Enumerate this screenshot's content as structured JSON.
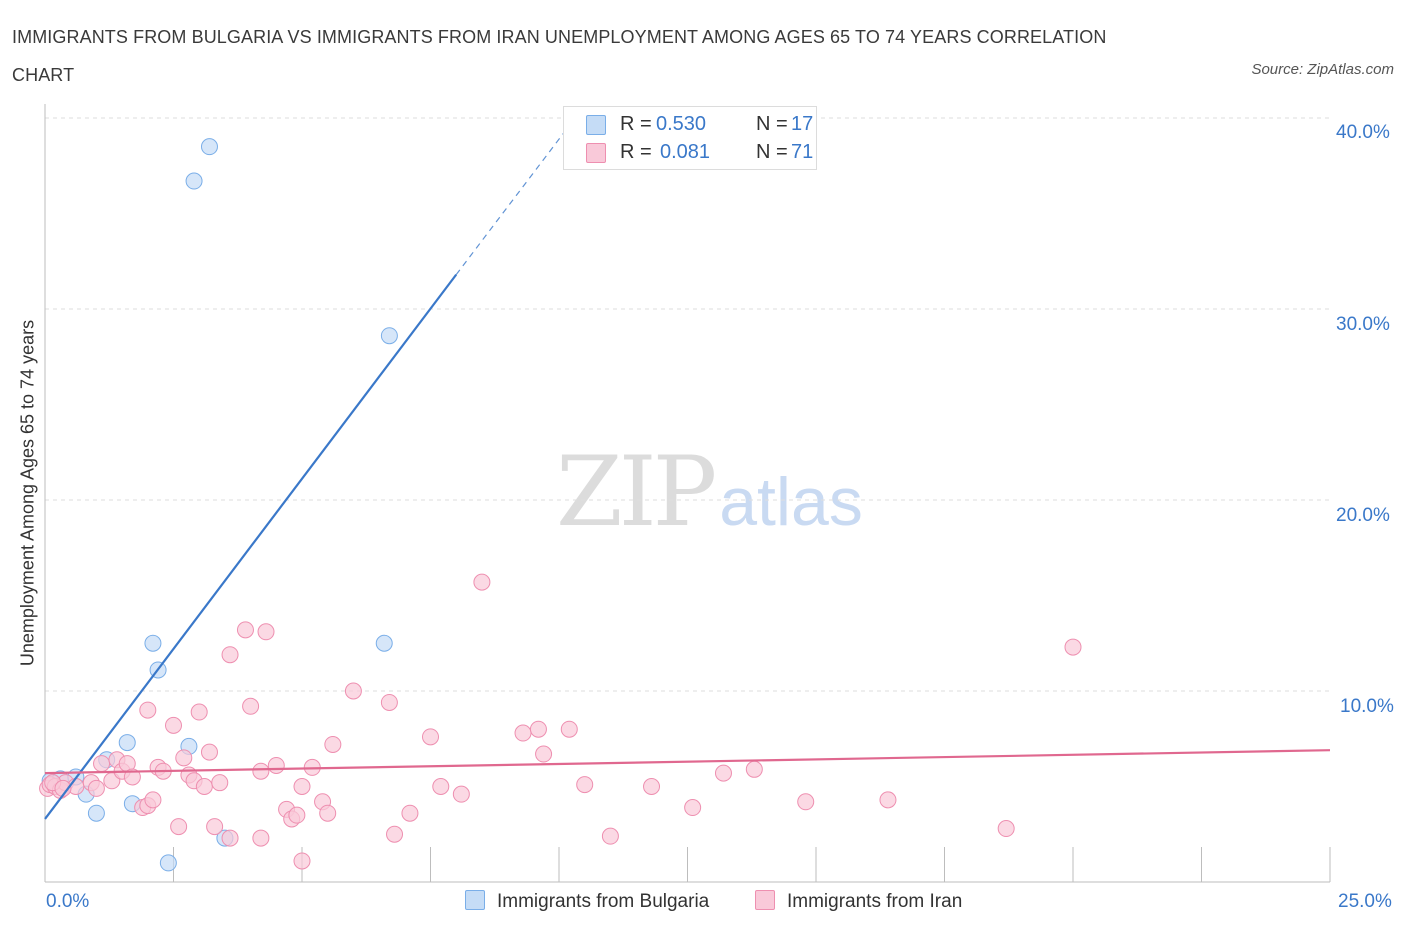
{
  "title": "IMMIGRANTS FROM BULGARIA VS IMMIGRANTS FROM IRAN UNEMPLOYMENT AMONG AGES 65 TO 74 YEARS CORRELATION CHART",
  "source": "Source: ZipAtlas.com",
  "watermark": {
    "zip": "ZIP",
    "atlas": "atlas"
  },
  "legend": {
    "r_label": "R =",
    "n_label": "N =",
    "bulgaria": {
      "r": "0.530",
      "n": "17"
    },
    "iran": {
      "r": "0.081",
      "n": "71"
    }
  },
  "chart_data": {
    "type": "scatter",
    "title": "IMMIGRANTS FROM BULGARIA VS IMMIGRANTS FROM IRAN UNEMPLOYMENT AMONG AGES 65 TO 74 YEARS CORRELATION CHART",
    "xlabel": "",
    "ylabel": "Unemployment Among Ages 65 to 74 years",
    "xlim": [
      0,
      25
    ],
    "ylim": [
      0,
      40
    ],
    "x_tick_labels": [
      "0.0%",
      "25.0%"
    ],
    "y_tick_labels": [
      "10.0%",
      "20.0%",
      "30.0%",
      "40.0%"
    ],
    "y_ticks": [
      10,
      20,
      30,
      40
    ],
    "grid": true,
    "legend_position": "top-center",
    "series": [
      {
        "name": "Immigrants from Bulgaria",
        "color": "#7aaee8",
        "fill": "#c5dcf6",
        "line_color": "#3a78c9",
        "r": 0.53,
        "n": 17,
        "trend": {
          "x0": 0,
          "y0": 3.3,
          "x1": 8.0,
          "y1": 31.8,
          "dashed_to_x": 10.2,
          "dashed_to_y": 39.6
        },
        "points": [
          [
            0.1,
            5.3
          ],
          [
            0.3,
            5.4
          ],
          [
            0.6,
            5.5
          ],
          [
            0.8,
            4.6
          ],
          [
            1.0,
            3.6
          ],
          [
            1.2,
            6.4
          ],
          [
            1.6,
            7.3
          ],
          [
            1.7,
            4.1
          ],
          [
            2.1,
            12.5
          ],
          [
            2.2,
            11.1
          ],
          [
            2.4,
            1.0
          ],
          [
            2.8,
            7.1
          ],
          [
            3.5,
            2.3
          ],
          [
            2.9,
            36.7
          ],
          [
            3.2,
            38.5
          ],
          [
            6.6,
            12.5
          ],
          [
            6.7,
            28.6
          ]
        ]
      },
      {
        "name": "Immigrants from Iran",
        "color": "#ee8fb0",
        "fill": "#f9c9d9",
        "line_color": "#e0688f",
        "r": 0.081,
        "n": 71,
        "trend": {
          "x0": 0,
          "y0": 5.7,
          "x1": 25,
          "y1": 6.9
        },
        "points": [
          [
            0.05,
            4.9
          ],
          [
            0.1,
            5.1
          ],
          [
            0.2,
            5.0
          ],
          [
            0.3,
            4.8
          ],
          [
            0.4,
            5.2
          ],
          [
            0.6,
            5.0
          ],
          [
            0.9,
            5.2
          ],
          [
            1.0,
            4.9
          ],
          [
            1.1,
            6.2
          ],
          [
            1.3,
            5.3
          ],
          [
            1.4,
            6.4
          ],
          [
            1.5,
            5.8
          ],
          [
            1.6,
            6.2
          ],
          [
            1.7,
            5.5
          ],
          [
            1.9,
            3.9
          ],
          [
            2.0,
            4.0
          ],
          [
            2.0,
            9.0
          ],
          [
            2.1,
            4.3
          ],
          [
            2.2,
            6.0
          ],
          [
            2.3,
            5.8
          ],
          [
            2.5,
            8.2
          ],
          [
            2.6,
            2.9
          ],
          [
            2.7,
            6.5
          ],
          [
            2.8,
            5.6
          ],
          [
            2.9,
            5.3
          ],
          [
            3.0,
            8.9
          ],
          [
            3.1,
            5.0
          ],
          [
            3.2,
            6.8
          ],
          [
            3.3,
            2.9
          ],
          [
            3.4,
            5.2
          ],
          [
            3.6,
            2.3
          ],
          [
            3.6,
            11.9
          ],
          [
            3.9,
            13.2
          ],
          [
            4.0,
            9.2
          ],
          [
            4.2,
            2.3
          ],
          [
            4.2,
            5.8
          ],
          [
            4.3,
            13.1
          ],
          [
            4.5,
            6.1
          ],
          [
            4.7,
            3.8
          ],
          [
            4.8,
            3.3
          ],
          [
            4.9,
            3.5
          ],
          [
            5.0,
            5.0
          ],
          [
            5.0,
            1.1
          ],
          [
            5.2,
            6.0
          ],
          [
            5.4,
            4.2
          ],
          [
            5.5,
            3.6
          ],
          [
            5.6,
            7.2
          ],
          [
            6.0,
            10.0
          ],
          [
            6.7,
            9.4
          ],
          [
            6.8,
            2.5
          ],
          [
            7.1,
            3.6
          ],
          [
            7.5,
            7.6
          ],
          [
            7.7,
            5.0
          ],
          [
            8.1,
            4.6
          ],
          [
            8.5,
            15.7
          ],
          [
            9.3,
            7.8
          ],
          [
            9.6,
            8.0
          ],
          [
            9.7,
            6.7
          ],
          [
            10.2,
            8.0
          ],
          [
            10.5,
            5.1
          ],
          [
            11.0,
            2.4
          ],
          [
            11.8,
            5.0
          ],
          [
            12.6,
            3.9
          ],
          [
            13.2,
            5.7
          ],
          [
            13.8,
            5.9
          ],
          [
            14.8,
            4.2
          ],
          [
            16.4,
            4.3
          ],
          [
            18.7,
            2.8
          ],
          [
            20.0,
            12.3
          ],
          [
            0.15,
            5.2
          ],
          [
            0.35,
            4.9
          ]
        ]
      }
    ]
  },
  "bottom_legend": {
    "bulgaria": "Immigrants from Bulgaria",
    "iran": "Immigrants from Iran"
  }
}
